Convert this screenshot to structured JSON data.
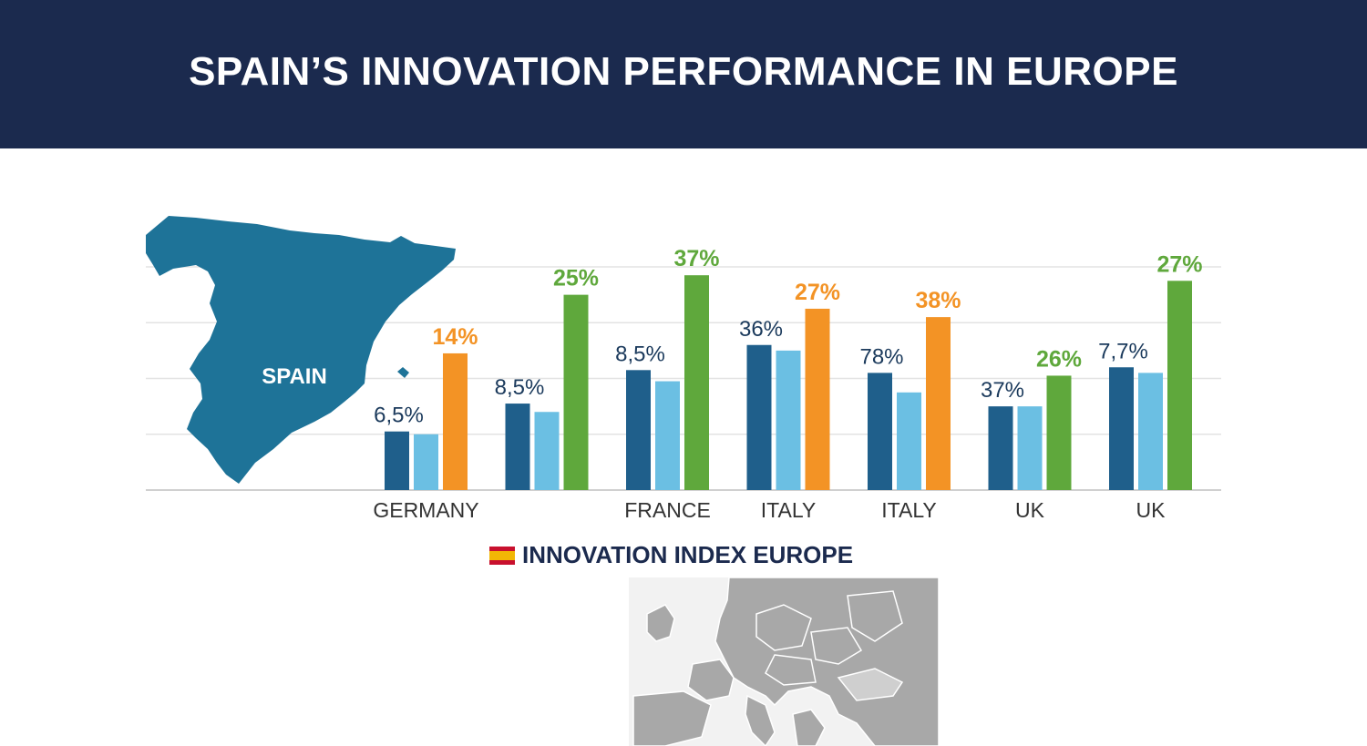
{
  "header": {
    "title": "SPAIN’S INNOVATION PERFORMANCE IN EUROPE"
  },
  "map": {
    "label": "SPAIN",
    "color": "#1e7398"
  },
  "legend": {
    "label": "INNOVATION INDEX EUROPE"
  },
  "colors": {
    "dark_blue": "#1f5f8b",
    "light_blue": "#6bbfe3",
    "orange": "#f39325",
    "green": "#5fa83c",
    "label_blue": "#1b3a5c",
    "header_bg": "#1b2a4e"
  },
  "chart_data": {
    "type": "bar",
    "title": "SPAIN’S INNOVATION PERFORMANCE IN EUROPE",
    "ylim": [
      0,
      40
    ],
    "grid": true,
    "categories": [
      "GERMANY",
      "",
      "FRANCE",
      "ITALY",
      "ITALY",
      "UK",
      "UK"
    ],
    "groups": [
      {
        "category": "GERMANY",
        "bars": [
          {
            "color": "dark_blue",
            "value": 10.5
          },
          {
            "color": "light_blue",
            "value": 10
          },
          {
            "color": "orange",
            "value": 24.5,
            "label": "14%"
          }
        ],
        "labels": [
          "6,5%",
          "14%"
        ]
      },
      {
        "category": "",
        "bars": [
          {
            "color": "dark_blue",
            "value": 15.5
          },
          {
            "color": "light_blue",
            "value": 14
          },
          {
            "color": "green",
            "value": 35,
            "label": "25%"
          }
        ],
        "labels": [
          "8,5%",
          "25%"
        ]
      },
      {
        "category": "FRANCE",
        "bars": [
          {
            "color": "dark_blue",
            "value": 21.5
          },
          {
            "color": "light_blue",
            "value": 19.5
          },
          {
            "color": "green",
            "value": 38.5,
            "label": "37%"
          }
        ],
        "labels": [
          "8,5%",
          "37%"
        ]
      },
      {
        "category": "ITALY",
        "bars": [
          {
            "color": "dark_blue",
            "value": 26
          },
          {
            "color": "light_blue",
            "value": 25
          },
          {
            "color": "orange",
            "value": 32.5,
            "label": "27%"
          }
        ],
        "labels": [
          "36%",
          "27%"
        ]
      },
      {
        "category": "ITALY",
        "bars": [
          {
            "color": "dark_blue",
            "value": 21
          },
          {
            "color": "light_blue",
            "value": 17.5
          },
          {
            "color": "orange",
            "value": 31,
            "label": "38%"
          }
        ],
        "labels": [
          "78%",
          "38%"
        ]
      },
      {
        "category": "UK",
        "bars": [
          {
            "color": "dark_blue",
            "value": 15
          },
          {
            "color": "light_blue",
            "value": 15
          },
          {
            "color": "green",
            "value": 20.5,
            "label": "26%"
          }
        ],
        "labels": [
          "37%",
          "26%"
        ]
      },
      {
        "category": "UK",
        "bars": [
          {
            "color": "dark_blue",
            "value": 22
          },
          {
            "color": "light_blue",
            "value": 21
          },
          {
            "color": "green",
            "value": 37.5,
            "label": "27%"
          }
        ],
        "labels": [
          "7,7%",
          "27%"
        ]
      }
    ]
  }
}
